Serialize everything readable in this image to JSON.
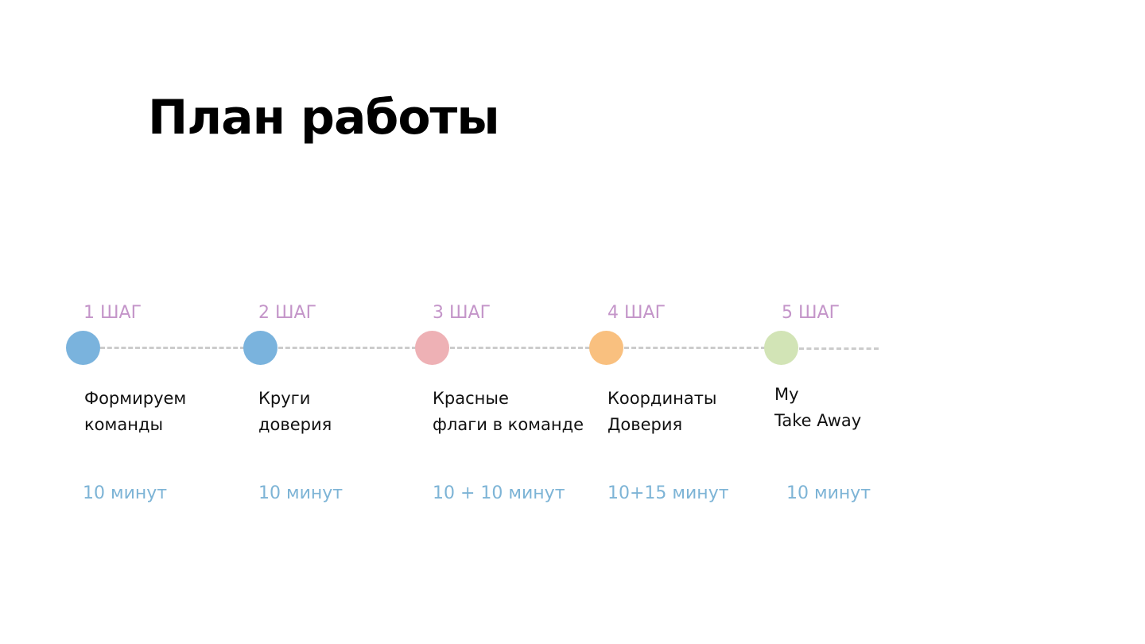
{
  "title": "План работы",
  "steps": [
    {
      "label": "1 ШАГ",
      "name_lines": [
        "Формируем",
        "команды"
      ],
      "duration": "10 минут",
      "color": "#7ab3dd"
    },
    {
      "label": "2 ШАГ",
      "name_lines": [
        "Круги",
        "доверия"
      ],
      "duration": "10 минут",
      "color": "#7ab3dd"
    },
    {
      "label": "3 ШАГ",
      "name_lines": [
        "Красные",
        "флаги в команде"
      ],
      "duration": "10 + 10 минут",
      "color": "#eeb1b5"
    },
    {
      "label": "4 ШАГ",
      "name_lines": [
        "Координаты",
        "Доверия"
      ],
      "duration": "10+15 минут",
      "color": "#f9c07f"
    },
    {
      "label": "5 ШАГ",
      "name_lines": [
        "My",
        "Take Away"
      ],
      "duration": "10 минут",
      "color": "#d2e4b6"
    }
  ],
  "colors": {
    "step_label": "#c495c9",
    "duration": "#7db4d6",
    "dashed_line": "#cccccc"
  }
}
